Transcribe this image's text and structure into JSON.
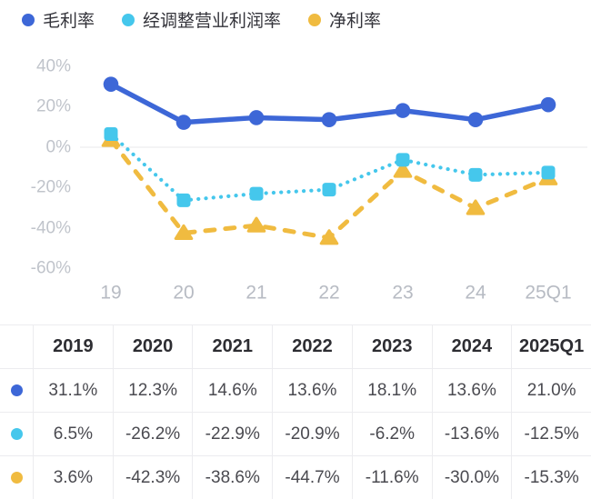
{
  "legend": {
    "items": [
      {
        "label": "毛利率",
        "color": "#3d67d7"
      },
      {
        "label": "经调整营业利润率",
        "color": "#45c7ec"
      },
      {
        "label": "净利率",
        "color": "#f0bb40"
      }
    ]
  },
  "chart_data": {
    "type": "line",
    "categories": [
      "19",
      "20",
      "21",
      "22",
      "23",
      "24",
      "25Q1"
    ],
    "series": [
      {
        "name": "毛利率",
        "color": "#3d67d7",
        "line_style": "solid",
        "marker": "circle",
        "values": [
          31.1,
          12.3,
          14.6,
          13.6,
          18.1,
          13.6,
          21.0
        ]
      },
      {
        "name": "经调整营业利润率",
        "color": "#45c7ec",
        "line_style": "dotted",
        "marker": "square",
        "values": [
          6.5,
          -26.2,
          -22.9,
          -20.9,
          -6.2,
          -13.6,
          -12.5
        ]
      },
      {
        "name": "净利率",
        "color": "#f0bb40",
        "line_style": "dashed",
        "marker": "triangle",
        "values": [
          3.6,
          -42.3,
          -38.6,
          -44.7,
          -11.6,
          -30.0,
          -15.3
        ]
      }
    ],
    "ylim": [
      -60,
      40
    ],
    "ytick_labels": [
      "40%",
      "20%",
      "0%",
      "-20%",
      "-40%",
      "-60%"
    ],
    "grid": "zero-line-only",
    "legend_position": "top",
    "title": "",
    "xlabel": "",
    "ylabel": ""
  },
  "table": {
    "headers": [
      "2019",
      "2020",
      "2021",
      "2022",
      "2023",
      "2024",
      "2025Q1"
    ],
    "rows": [
      {
        "series": "毛利率",
        "color": "#3d67d7",
        "values": [
          "31.1%",
          "12.3%",
          "14.6%",
          "13.6%",
          "18.1%",
          "13.6%",
          "21.0%"
        ]
      },
      {
        "series": "经调整营业利润率",
        "color": "#45c7ec",
        "values": [
          "6.5%",
          "-26.2%",
          "-22.9%",
          "-20.9%",
          "-6.2%",
          "-13.6%",
          "-12.5%"
        ]
      },
      {
        "series": "净利率",
        "color": "#f0bb40",
        "values": [
          "3.6%",
          "-42.3%",
          "-38.6%",
          "-44.7%",
          "-11.6%",
          "-30.0%",
          "-15.3%"
        ]
      }
    ]
  }
}
